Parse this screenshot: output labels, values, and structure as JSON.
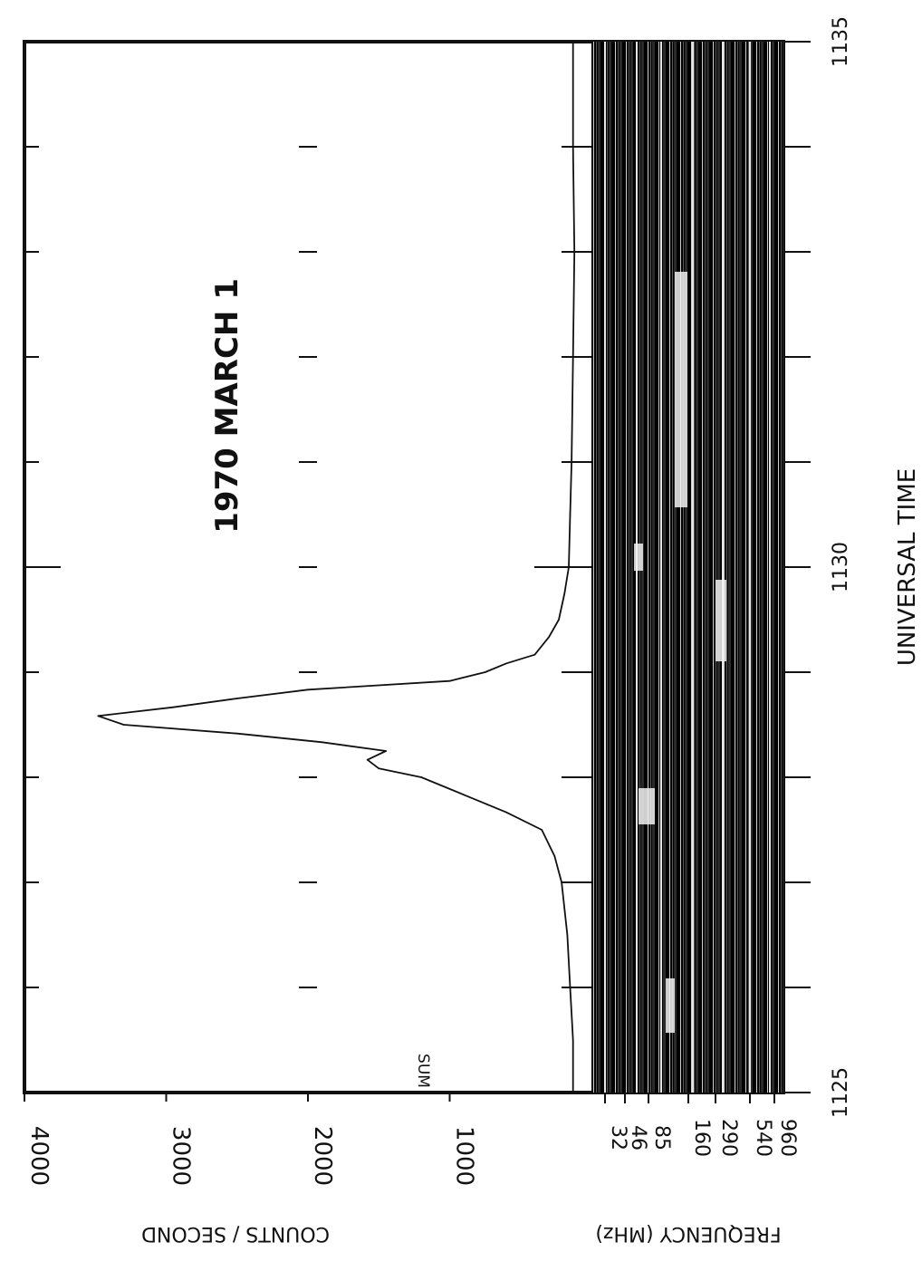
{
  "chart_data": {
    "type": "line",
    "title": "1970 MARCH 1",
    "xlabel": "UNIVERSAL TIME",
    "x_ticks": [
      "1125",
      "1130",
      "1135"
    ],
    "x_range_minutes": [
      "11:25",
      "11:35"
    ],
    "ylabel": "COUNTS / SECOND",
    "y_ticks": [
      4000,
      3000,
      2000,
      1000
    ],
    "ylim": [
      0,
      4000
    ],
    "series": [
      {
        "name": "SUM",
        "x": [
          "11:25:00",
          "11:25:30",
          "11:26:00",
          "11:26:30",
          "11:27:00",
          "11:27:15",
          "11:27:30",
          "11:27:40",
          "11:27:50",
          "11:28:00",
          "11:28:05",
          "11:28:10",
          "11:28:15",
          "11:28:20",
          "11:28:25",
          "11:28:30",
          "11:28:35",
          "11:28:40",
          "11:28:45",
          "11:28:50",
          "11:28:55",
          "11:29:00",
          "11:29:05",
          "11:29:10",
          "11:29:20",
          "11:29:30",
          "11:29:45",
          "11:30:00",
          "11:30:30",
          "11:31:00",
          "11:32:00",
          "11:33:00",
          "11:34:00",
          "11:35:00"
        ],
        "values": [
          130,
          130,
          150,
          170,
          210,
          260,
          350,
          600,
          900,
          1200,
          1500,
          1580,
          1450,
          1900,
          2500,
          3300,
          3480,
          2950,
          2500,
          2000,
          1000,
          750,
          600,
          400,
          300,
          230,
          190,
          160,
          150,
          140,
          130,
          120,
          130,
          130
        ]
      }
    ],
    "spectrogram": {
      "ylabel": "FREQUENCY (MHz)",
      "frequency_ticks": [
        "32",
        "46",
        "85",
        "160",
        "290",
        "540",
        "960"
      ]
    },
    "grid": false,
    "orientation": "rotated 90 degrees clockwise"
  }
}
